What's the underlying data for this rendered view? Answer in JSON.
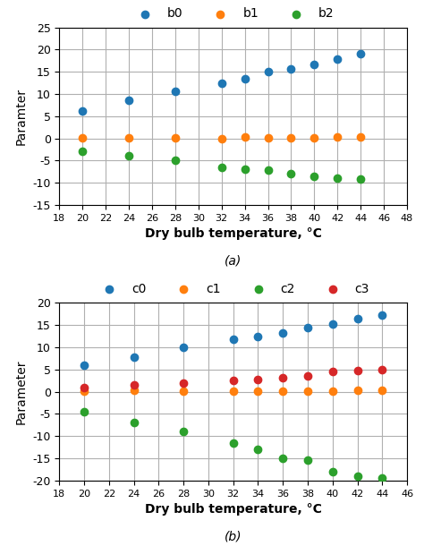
{
  "chart_data": [
    {
      "type": "scatter",
      "title": "(a)",
      "xlabel": "Dry bulb temperature, °C",
      "ylabel": "Paramter",
      "xlim": [
        18,
        48
      ],
      "ylim": [
        -15,
        25
      ],
      "xticks": [
        18,
        20,
        22,
        24,
        26,
        28,
        30,
        32,
        34,
        36,
        38,
        40,
        42,
        44,
        46,
        48
      ],
      "yticks": [
        -15,
        -10,
        -5,
        0,
        5,
        10,
        15,
        20,
        25
      ],
      "grid": true,
      "legend": "upper center",
      "series": [
        {
          "name": "b0",
          "x": [
            20,
            24,
            28,
            32,
            34,
            36,
            38,
            40,
            42,
            44
          ],
          "values": [
            6.2,
            8.5,
            10.5,
            12.5,
            13.5,
            15.0,
            15.7,
            16.7,
            17.8,
            19.0
          ]
        },
        {
          "name": "b1",
          "x": [
            20,
            24,
            28,
            32,
            34,
            36,
            38,
            40,
            42,
            44
          ],
          "values": [
            0.2,
            0.2,
            0.2,
            -0.1,
            0.3,
            0.2,
            0.2,
            0.2,
            0.3,
            0.4
          ]
        },
        {
          "name": "b2",
          "x": [
            20,
            24,
            28,
            32,
            34,
            36,
            38,
            40,
            42,
            44
          ],
          "values": [
            -3.0,
            -4.0,
            -5.0,
            -6.5,
            -7.0,
            -7.2,
            -8.0,
            -8.5,
            -9.0,
            -9.2
          ]
        }
      ]
    },
    {
      "type": "scatter",
      "title": "(b)",
      "xlabel": "Dry bulb temperature, °C",
      "ylabel": "Parameter",
      "xlim": [
        18,
        46
      ],
      "ylim": [
        -20,
        20
      ],
      "xticks": [
        18,
        20,
        22,
        24,
        26,
        28,
        30,
        32,
        34,
        36,
        38,
        40,
        42,
        44,
        46
      ],
      "yticks": [
        -20,
        -15,
        -10,
        -5,
        0,
        5,
        10,
        15,
        20
      ],
      "grid": true,
      "legend": "upper center",
      "series": [
        {
          "name": "c0",
          "x": [
            20,
            24,
            28,
            32,
            34,
            36,
            38,
            40,
            42,
            44
          ],
          "values": [
            6.0,
            7.8,
            9.9,
            11.7,
            12.4,
            13.2,
            14.5,
            15.2,
            16.5,
            17.3
          ]
        },
        {
          "name": "c1",
          "x": [
            20,
            24,
            28,
            32,
            34,
            36,
            38,
            40,
            42,
            44
          ],
          "values": [
            0.2,
            0.3,
            0.2,
            0.2,
            0.2,
            0.2,
            0.1,
            0.2,
            0.3,
            0.3
          ]
        },
        {
          "name": "c2",
          "x": [
            20,
            24,
            28,
            32,
            34,
            36,
            38,
            40,
            42,
            44
          ],
          "values": [
            -4.5,
            -7.0,
            -9.0,
            -11.5,
            -13.0,
            -15.0,
            -15.5,
            -18.0,
            -19.0,
            -19.5
          ]
        },
        {
          "name": "c3",
          "x": [
            20,
            24,
            28,
            32,
            34,
            36,
            38,
            40,
            42,
            44
          ],
          "values": [
            1.0,
            1.5,
            2.0,
            2.5,
            2.8,
            3.2,
            3.5,
            4.5,
            4.8,
            5.0
          ]
        }
      ]
    }
  ]
}
